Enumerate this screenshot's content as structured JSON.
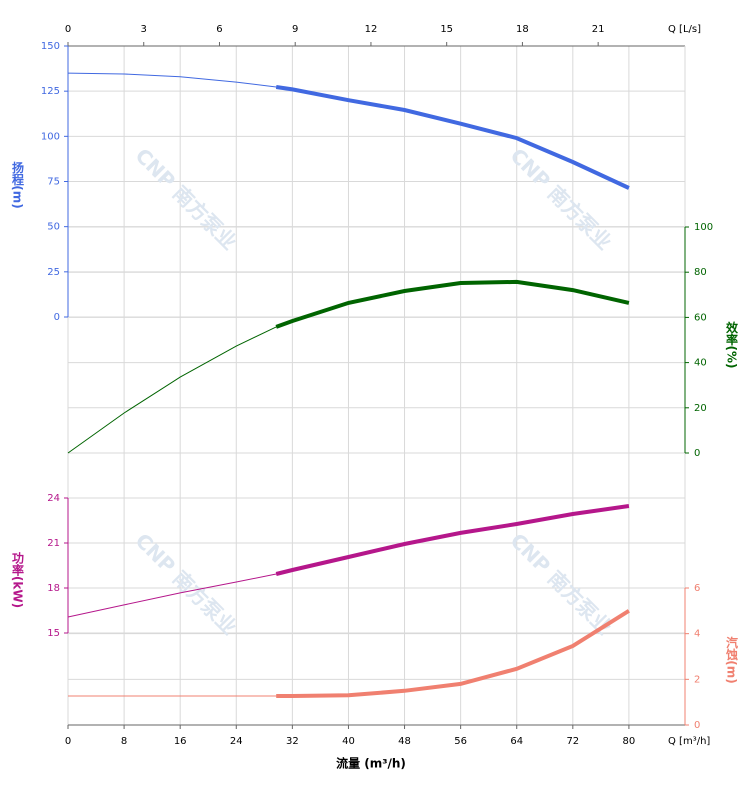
{
  "chart_data": {
    "type": "line",
    "xlabel": "流量 (m³/h)",
    "x_unit_label": "Q [m³/h]",
    "x2_unit_label": "Q [L/s]",
    "watermark": "CNP 南方泵业",
    "xlim": [
      0,
      88
    ],
    "xticks": [
      0,
      8,
      16,
      24,
      32,
      40,
      48,
      56,
      64,
      72,
      80
    ],
    "x2lim": [
      0,
      24.44
    ],
    "x2ticks": [
      0,
      3,
      6,
      9,
      12,
      15,
      18,
      21
    ],
    "grid": true,
    "x": [
      0,
      8,
      16,
      24,
      29.7,
      32,
      40,
      48,
      56,
      64,
      72,
      80
    ],
    "duty_range": [
      29.7,
      80
    ],
    "series": [
      {
        "name": "扬程(m)",
        "side": "left",
        "color": "#4169e1",
        "ylim": [
          0,
          150
        ],
        "yticks": [
          0,
          25,
          50,
          75,
          100,
          125,
          150
        ],
        "values": [
          135,
          134.5,
          133,
          130,
          127.3,
          126,
          120,
          114.6,
          107,
          99,
          85.8,
          71.4
        ]
      },
      {
        "name": "效率(%)",
        "side": "right",
        "color": "#006400",
        "ylim": [
          0,
          100
        ],
        "yticks": [
          0,
          20,
          40,
          60,
          80,
          100
        ],
        "values": [
          0,
          17.7,
          33.6,
          47.3,
          55.8,
          58.4,
          66.4,
          71.7,
          75.2,
          75.7,
          72.1,
          66.4
        ]
      },
      {
        "name": "功率(kW)",
        "side": "left",
        "color": "#b5178b",
        "ylim": [
          15,
          24
        ],
        "yticks": [
          15,
          18,
          21,
          24
        ],
        "values": [
          16.07,
          16.87,
          17.67,
          18.4,
          18.93,
          19.2,
          20.07,
          20.93,
          21.67,
          22.27,
          22.93,
          23.47
        ]
      },
      {
        "name": "汽蚀(m)",
        "side": "right",
        "color": "#f08070",
        "ylim": [
          0,
          6
        ],
        "yticks": [
          0,
          2,
          4,
          6
        ],
        "values": [
          1.27,
          1.27,
          1.27,
          1.27,
          1.27,
          1.27,
          1.3,
          1.5,
          1.8,
          2.46,
          3.46,
          5.0
        ]
      }
    ]
  }
}
